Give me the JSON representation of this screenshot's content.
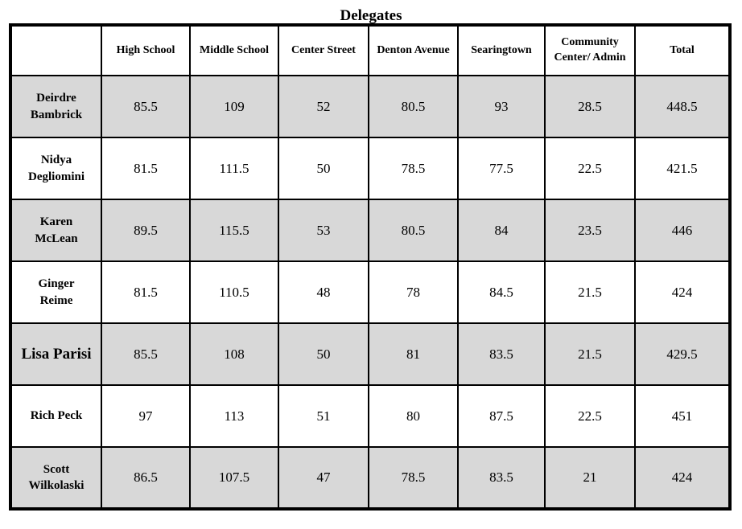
{
  "title": "Delegates",
  "chart_data": {
    "type": "table",
    "title": "Delegates",
    "columns": [
      "",
      "High School",
      "Middle School",
      "Center Street",
      "Denton Avenue",
      "Searingtown",
      "Community Center/ Admin",
      "Total"
    ],
    "rows": [
      {
        "name": "Deirdre Bambrick",
        "name_lines": [
          "Deirdre",
          "Bambrick"
        ],
        "values": [
          85.5,
          109,
          52,
          80.5,
          93,
          28.5,
          448.5
        ]
      },
      {
        "name": "Nidya Degliomini",
        "name_lines": [
          "Nidya",
          "Degliomini"
        ],
        "values": [
          81.5,
          111.5,
          50,
          78.5,
          77.5,
          22.5,
          421.5
        ]
      },
      {
        "name": "Karen McLean",
        "name_lines": [
          "Karen",
          "McLean"
        ],
        "values": [
          89.5,
          115.5,
          53,
          80.5,
          84,
          23.5,
          446
        ]
      },
      {
        "name": "Ginger Reime",
        "name_lines": [
          "Ginger",
          "Reime"
        ],
        "values": [
          81.5,
          110.5,
          48,
          78,
          84.5,
          21.5,
          424
        ]
      },
      {
        "name": "Lisa Parisi",
        "name_lines": [
          "Lisa Parisi"
        ],
        "values": [
          85.5,
          108,
          50,
          81,
          83.5,
          21.5,
          429.5
        ]
      },
      {
        "name": "Rich Peck",
        "name_lines": [
          "Rich Peck"
        ],
        "values": [
          97,
          113,
          51,
          80,
          87.5,
          22.5,
          451
        ]
      },
      {
        "name": "Scott Wilkolaski",
        "name_lines": [
          "Scott",
          "Wilkolaski"
        ],
        "values": [
          86.5,
          107.5,
          47,
          78.5,
          83.5,
          21,
          424
        ]
      }
    ],
    "stripe_color": "#d8d8d8",
    "border_color": "#000000",
    "layout": {
      "grid": true,
      "striped_rows": "odd",
      "header_background": "#ffffff"
    }
  }
}
